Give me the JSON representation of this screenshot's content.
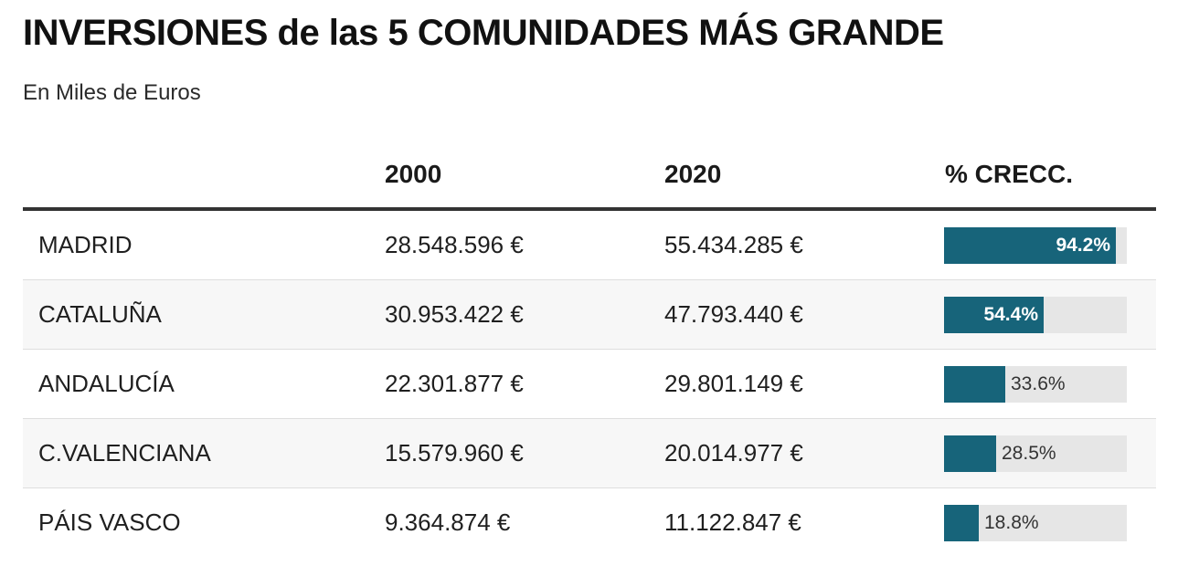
{
  "title": "INVERSIONES de las 5 COMUNIDADES MÁS GRANDE",
  "subtitle": "En Miles de Euros",
  "headers": {
    "region": "",
    "y2000": "2000",
    "y2020": "2020",
    "growth": "% CRECC."
  },
  "rows": [
    {
      "region": "MADRID",
      "v2000": "28.548.596 €",
      "v2020": "55.434.285 €",
      "growth": 94.2,
      "growth_label": "94.2%"
    },
    {
      "region": "CATALUÑA",
      "v2000": "30.953.422 €",
      "v2020": "47.793.440 €",
      "growth": 54.4,
      "growth_label": "54.4%"
    },
    {
      "region": "ANDALUCÍA",
      "v2000": "22.301.877 €",
      "v2020": "29.801.149 €",
      "growth": 33.6,
      "growth_label": "33.6%"
    },
    {
      "region": "C.VALENCIANA",
      "v2000": "15.579.960 €",
      "v2020": "20.014.977 €",
      "growth": 28.5,
      "growth_label": "28.5%"
    },
    {
      "region": "PÁIS VASCO",
      "v2000": "9.364.874 €",
      "v2020": "11.122.847 €",
      "growth": 18.8,
      "growth_label": "18.8%"
    }
  ],
  "chart_data": {
    "type": "table",
    "title": "INVERSIONES de las 5 COMUNIDADES MÁS GRANDE",
    "subtitle": "En Miles de Euros",
    "columns": [
      "",
      "2000",
      "2020",
      "% CRECC."
    ],
    "categories": [
      "MADRID",
      "CATALUÑA",
      "ANDALUCÍA",
      "C.VALENCIANA",
      "PÁIS VASCO"
    ],
    "series": [
      {
        "name": "2000",
        "values": [
          28548596,
          30953422,
          22301877,
          15579960,
          9364874
        ]
      },
      {
        "name": "2020",
        "values": [
          55434285,
          47793440,
          29801149,
          20014977,
          11122847
        ]
      },
      {
        "name": "% CRECC.",
        "values": [
          94.2,
          54.4,
          33.6,
          28.5,
          18.8
        ]
      }
    ],
    "bar_scale_max": 100
  },
  "colors": {
    "bar": "#17647a",
    "bar_track": "#e6e6e6",
    "header_rule": "#333333",
    "alt_row": "#f7f7f7"
  }
}
